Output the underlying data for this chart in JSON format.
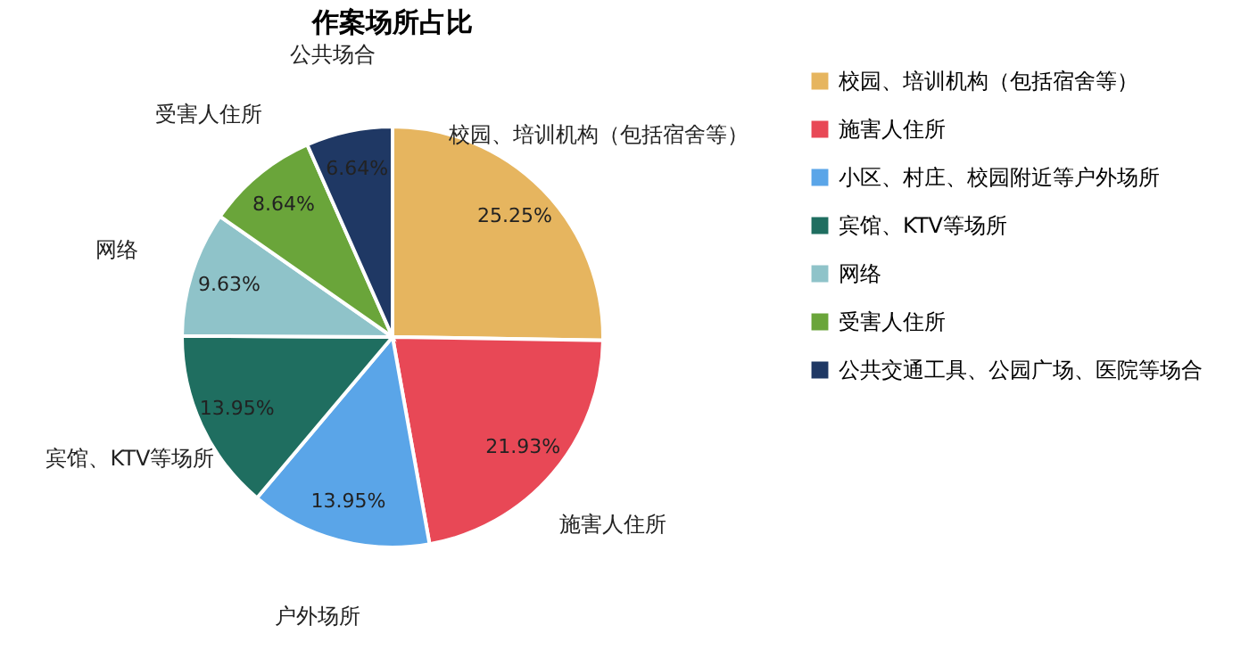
{
  "chart_data": {
    "type": "pie",
    "title": "作案场所占比",
    "categories": [
      "校园、培训机构（包括宿舍等）",
      "施害人住所",
      "小区、村庄、校园附近等户外场所",
      "宾馆、KTV等场所",
      "网络",
      "受害人住所",
      "公共交通工具、公园广场、医院等场合"
    ],
    "values": [
      25.25,
      21.93,
      13.95,
      13.95,
      9.63,
      8.64,
      6.64
    ],
    "colors": [
      "#e6b55f",
      "#e84856",
      "#5aa5e8",
      "#1f6e60",
      "#8fc3c9",
      "#6aa53a",
      "#1f3864"
    ],
    "value_labels": [
      "25.25%",
      "21.93%",
      "13.95%",
      "13.95%",
      "9.63%",
      "8.64%",
      "6.64%"
    ],
    "annotations": [
      "校园、培训机构（包括宿舍等）",
      "施害人住所",
      "户外场所",
      "宾馆、KTV等场所",
      "网络",
      "受害人住所",
      "公共场合"
    ],
    "legend": "right"
  }
}
